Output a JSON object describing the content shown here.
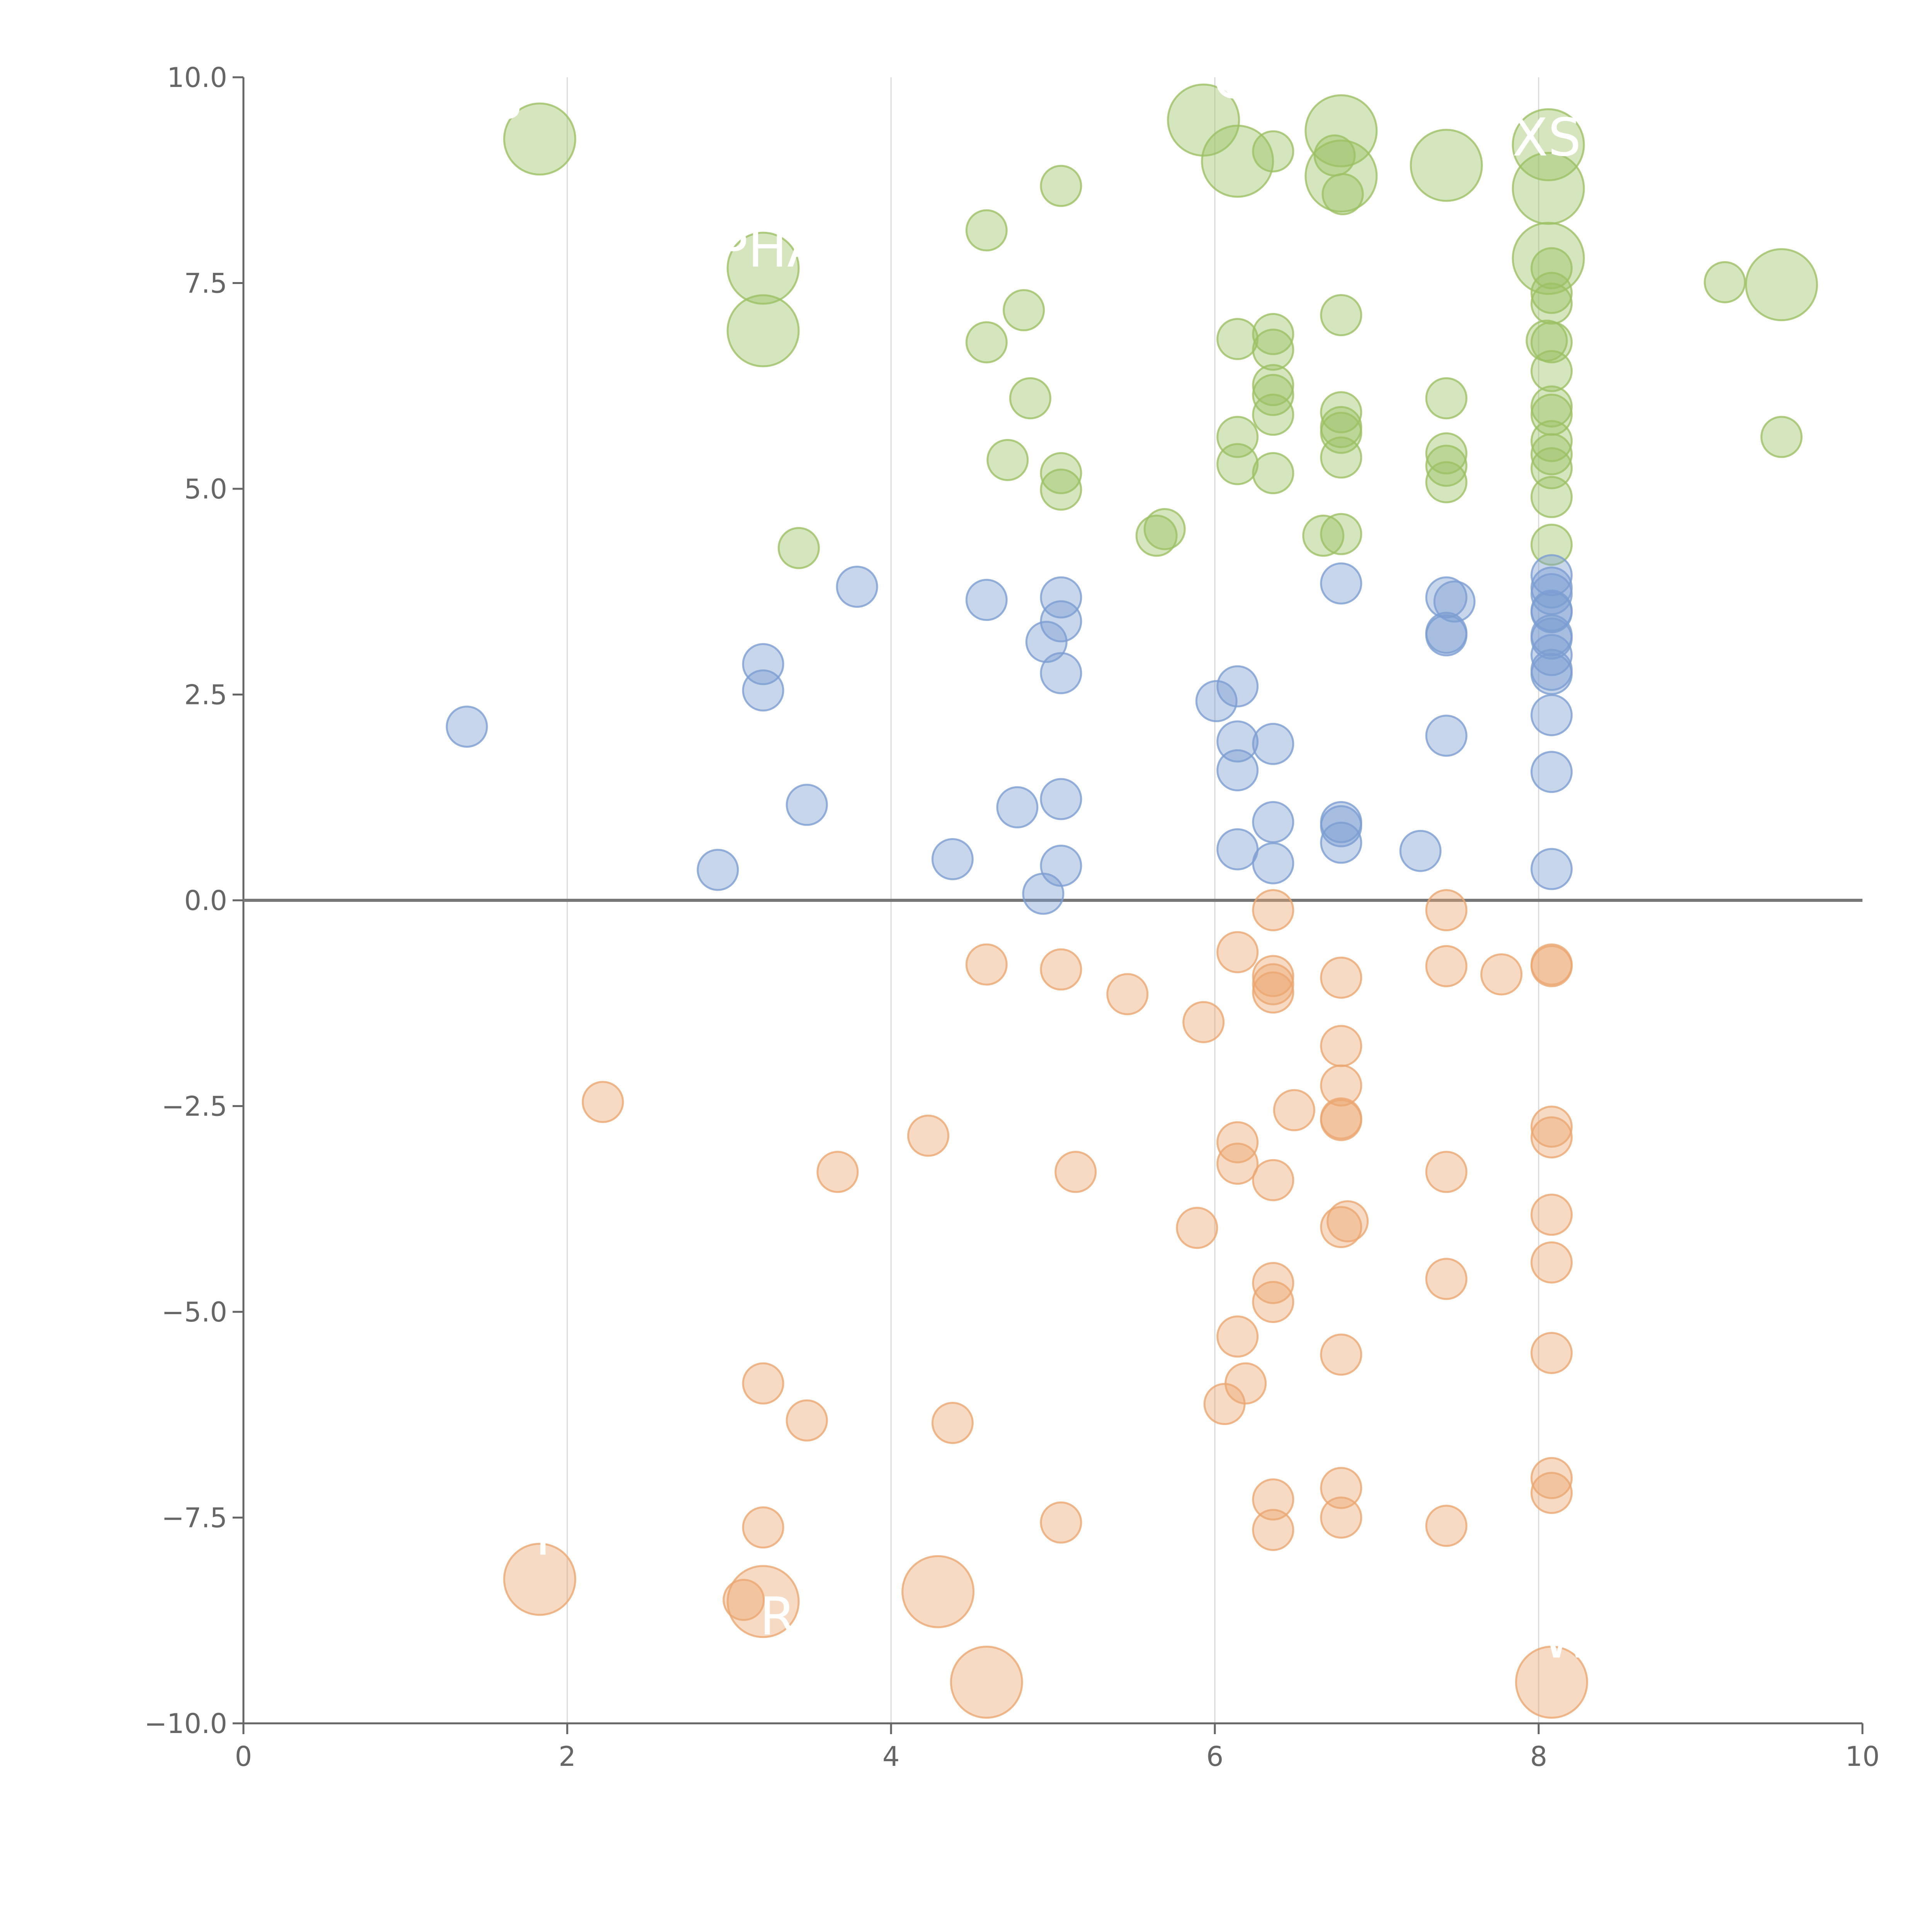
{
  "chart_data": {
    "type": "scatter",
    "title": "",
    "xlabel": "",
    "ylabel": "",
    "xlim": [
      0,
      10
    ],
    "ylim": [
      -10,
      10
    ],
    "x_ticks": [
      0,
      2,
      4,
      6,
      8,
      10
    ],
    "x_tick_labels": [
      "0",
      "2",
      "4",
      "6",
      "8",
      "10"
    ],
    "y_ticks": [
      10,
      7.5,
      5,
      2.5,
      0,
      -2.5,
      -5,
      -7.5,
      -10
    ],
    "y_tick_labels": [
      "10.0",
      "7.5",
      "5.0",
      "2.5",
      "0.0",
      "−2.5",
      "−5.0",
      "−7.5",
      "−10.0"
    ],
    "vertical_gridlines": [
      2,
      4,
      6,
      8
    ],
    "horizontal_reference_line": 0,
    "legend": "none",
    "series": [
      {
        "color": "#9cc064",
        "points": [
          [
            1.83,
            9.25,
            2
          ],
          [
            5.05,
            8.68,
            1
          ],
          [
            4.59,
            8.14,
            1
          ],
          [
            5.93,
            9.48,
            2
          ],
          [
            6.14,
            8.98,
            2
          ],
          [
            6.36,
            9.1,
            1
          ],
          [
            6.78,
            9.35,
            2
          ],
          [
            6.74,
            9.05,
            1
          ],
          [
            6.78,
            8.8,
            2
          ],
          [
            6.79,
            8.58,
            1
          ],
          [
            7.43,
            8.93,
            2
          ],
          [
            8.06,
            9.18,
            2
          ],
          [
            8.06,
            8.65,
            2
          ],
          [
            3.21,
            7.68,
            2
          ],
          [
            3.21,
            6.92,
            2
          ],
          [
            4.82,
            7.17,
            1
          ],
          [
            4.59,
            6.78,
            1
          ],
          [
            4.86,
            6.1,
            1
          ],
          [
            4.72,
            5.35,
            1
          ],
          [
            5.05,
            5.19,
            1
          ],
          [
            5.05,
            4.99,
            1
          ],
          [
            3.43,
            4.28,
            1
          ],
          [
            5.64,
            4.43,
            1
          ],
          [
            5.69,
            4.51,
            1
          ],
          [
            6.14,
            6.82,
            1
          ],
          [
            6.36,
            6.88,
            1
          ],
          [
            6.36,
            6.69,
            1
          ],
          [
            6.36,
            6.26,
            1
          ],
          [
            6.36,
            6.14,
            1
          ],
          [
            6.36,
            5.9,
            1
          ],
          [
            6.14,
            5.63,
            1
          ],
          [
            6.14,
            5.3,
            1
          ],
          [
            6.36,
            5.19,
            1
          ],
          [
            6.67,
            4.43,
            1
          ],
          [
            6.78,
            4.45,
            1
          ],
          [
            6.78,
            7.11,
            1
          ],
          [
            6.78,
            5.93,
            1
          ],
          [
            6.78,
            5.75,
            1
          ],
          [
            6.78,
            5.68,
            1
          ],
          [
            6.78,
            5.38,
            1
          ],
          [
            7.43,
            6.1,
            1
          ],
          [
            7.43,
            5.43,
            1
          ],
          [
            7.43,
            5.28,
            1
          ],
          [
            7.43,
            5.08,
            1
          ],
          [
            8.06,
            7.8,
            2
          ],
          [
            8.08,
            7.68,
            1
          ],
          [
            8.08,
            7.38,
            1
          ],
          [
            8.08,
            7.25,
            1
          ],
          [
            8.05,
            6.8,
            1
          ],
          [
            8.08,
            6.78,
            1
          ],
          [
            8.08,
            6.43,
            1
          ],
          [
            8.08,
            6.0,
            1
          ],
          [
            8.08,
            5.9,
            1
          ],
          [
            8.08,
            5.58,
            1
          ],
          [
            8.08,
            5.42,
            1
          ],
          [
            8.08,
            5.25,
            1
          ],
          [
            8.08,
            4.9,
            1
          ],
          [
            8.08,
            4.32,
            1
          ],
          [
            9.15,
            7.51,
            1
          ],
          [
            9.5,
            7.48,
            2
          ],
          [
            9.5,
            5.63,
            1
          ]
        ]
      },
      {
        "color": "#7c9ed2",
        "points": [
          [
            1.38,
            2.11,
            1
          ],
          [
            2.93,
            0.37,
            1
          ],
          [
            3.21,
            2.87,
            1
          ],
          [
            3.21,
            2.55,
            1
          ],
          [
            3.48,
            1.16,
            1
          ],
          [
            3.79,
            3.81,
            1
          ],
          [
            4.38,
            0.5,
            1
          ],
          [
            4.59,
            3.65,
            1
          ],
          [
            4.78,
            1.13,
            1
          ],
          [
            4.96,
            3.14,
            1
          ],
          [
            5.05,
            3.68,
            1
          ],
          [
            5.05,
            3.39,
            1
          ],
          [
            5.05,
            2.76,
            1
          ],
          [
            5.05,
            1.23,
            1
          ],
          [
            5.05,
            0.42,
            1
          ],
          [
            4.94,
            0.08,
            1
          ],
          [
            6.01,
            2.42,
            1
          ],
          [
            6.14,
            2.6,
            1
          ],
          [
            6.14,
            1.93,
            1
          ],
          [
            6.14,
            1.58,
            1
          ],
          [
            6.36,
            1.9,
            1
          ],
          [
            6.36,
            0.95,
            1
          ],
          [
            6.14,
            0.62,
            1
          ],
          [
            6.36,
            0.45,
            1
          ],
          [
            6.78,
            3.85,
            1
          ],
          [
            6.78,
            0.95,
            1
          ],
          [
            6.78,
            0.9,
            1
          ],
          [
            6.78,
            0.7,
            1
          ],
          [
            7.27,
            0.6,
            1
          ],
          [
            7.43,
            3.68,
            1
          ],
          [
            7.48,
            3.63,
            1
          ],
          [
            7.43,
            3.25,
            1
          ],
          [
            7.43,
            3.22,
            1
          ],
          [
            7.43,
            2.0,
            1
          ],
          [
            8.08,
            3.95,
            1
          ],
          [
            8.08,
            3.8,
            1
          ],
          [
            8.08,
            3.72,
            1
          ],
          [
            8.08,
            3.52,
            1
          ],
          [
            8.08,
            3.5,
            1
          ],
          [
            8.08,
            3.22,
            1
          ],
          [
            8.08,
            3.18,
            1
          ],
          [
            8.08,
            2.98,
            1
          ],
          [
            8.08,
            2.8,
            1
          ],
          [
            8.08,
            2.75,
            1
          ],
          [
            8.08,
            2.25,
            1
          ],
          [
            8.08,
            1.56,
            1
          ],
          [
            8.08,
            0.38,
            1
          ]
        ]
      },
      {
        "color": "#eba671",
        "points": [
          [
            2.22,
            -2.45,
            1
          ],
          [
            3.67,
            -3.3,
            1
          ],
          [
            4.23,
            -2.86,
            1
          ],
          [
            4.59,
            -0.78,
            1
          ],
          [
            5.05,
            -0.84,
            1
          ],
          [
            5.46,
            -1.14,
            1
          ],
          [
            5.93,
            -1.48,
            1
          ],
          [
            5.14,
            -3.3,
            1
          ],
          [
            5.89,
            -3.98,
            1
          ],
          [
            6.14,
            -0.63,
            1
          ],
          [
            6.36,
            -0.12,
            1
          ],
          [
            6.36,
            -0.92,
            1
          ],
          [
            6.36,
            -1.02,
            1
          ],
          [
            6.36,
            -1.12,
            1
          ],
          [
            6.49,
            -2.55,
            1
          ],
          [
            6.14,
            -2.94,
            1
          ],
          [
            6.14,
            -3.2,
            1
          ],
          [
            6.36,
            -3.4,
            1
          ],
          [
            6.78,
            -0.94,
            1
          ],
          [
            6.78,
            -1.77,
            1
          ],
          [
            6.78,
            -2.25,
            1
          ],
          [
            6.78,
            -2.65,
            1
          ],
          [
            6.78,
            -2.67,
            1
          ],
          [
            6.78,
            -3.97,
            1
          ],
          [
            6.82,
            -3.9,
            1
          ],
          [
            7.43,
            -0.12,
            1
          ],
          [
            7.43,
            -0.8,
            1
          ],
          [
            7.77,
            -0.9,
            1
          ],
          [
            7.43,
            -3.3,
            1
          ],
          [
            8.08,
            -0.78,
            1
          ],
          [
            8.08,
            -0.8,
            1
          ],
          [
            8.08,
            -2.75,
            1
          ],
          [
            8.08,
            -2.88,
            1
          ],
          [
            8.08,
            -3.82,
            1
          ],
          [
            3.21,
            -5.87,
            1
          ],
          [
            3.48,
            -6.32,
            1
          ],
          [
            4.38,
            -6.35,
            1
          ],
          [
            3.21,
            -7.62,
            1
          ],
          [
            5.05,
            -7.56,
            1
          ],
          [
            6.36,
            -4.65,
            1
          ],
          [
            6.36,
            -4.88,
            1
          ],
          [
            6.14,
            -5.3,
            1
          ],
          [
            6.19,
            -5.87,
            1
          ],
          [
            6.06,
            -6.12,
            1
          ],
          [
            6.36,
            -7.28,
            1
          ],
          [
            6.36,
            -7.65,
            1
          ],
          [
            6.78,
            -5.52,
            1
          ],
          [
            6.78,
            -7.14,
            1
          ],
          [
            6.78,
            -7.5,
            1
          ],
          [
            7.43,
            -4.6,
            1
          ],
          [
            7.43,
            -7.6,
            1
          ],
          [
            8.08,
            -4.4,
            1
          ],
          [
            8.08,
            -5.5,
            1
          ],
          [
            8.08,
            -7.02,
            1
          ],
          [
            8.08,
            -7.2,
            1
          ],
          [
            1.83,
            -8.25,
            2
          ],
          [
            3.21,
            -8.52,
            2
          ],
          [
            3.09,
            -8.5,
            1
          ],
          [
            4.29,
            -8.4,
            2
          ],
          [
            4.59,
            -9.5,
            2
          ],
          [
            8.08,
            -9.5,
            2
          ]
        ]
      }
    ],
    "annotations": [
      {
        "text": "HS",
        "x": 1.5,
        "y": 9.5
      },
      {
        "text": "C",
        "x": 6.1,
        "y": 9.75
      },
      {
        "text": "XS",
        "x": 8.05,
        "y": 9.05
      },
      {
        "text": "PHA",
        "x": 3.25,
        "y": 7.7
      },
      {
        "text": "T",
        "x": 1.85,
        "y": -7.95
      },
      {
        "text": "R",
        "x": 3.3,
        "y": -8.92
      },
      {
        "text": "W",
        "x": 8.18,
        "y": -9.2
      }
    ]
  }
}
